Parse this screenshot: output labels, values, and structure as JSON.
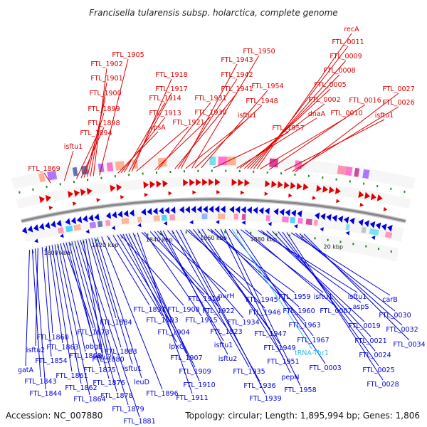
{
  "title": "Francisella tularensis subsp. holarctica, complete genome",
  "footer": {
    "accession": "Accession: NC_007880",
    "topology": "Topology: circular; Length: 1,895,994 bp; Genes: 1,806"
  },
  "colors": {
    "forward": "#e00000",
    "reverse": "#0000dd",
    "trna": "#33bbee",
    "backbone": "#888888",
    "ticks": "#1a8a1a"
  },
  "kbp_marks": [
    "1800 kbp",
    "1820 kbp",
    "1840 kbp",
    "1860 kbp",
    "1880 kbp",
    "20 kbp"
  ],
  "top_labels": [
    "FTL_1869",
    "isftu1",
    "FTL_1894",
    "FTL_1898",
    "FTL_1899",
    "FTL_1900",
    "FTL_1901",
    "FTL_1902",
    "FTL_1905",
    "rpsA",
    "FTL_1913",
    "FTL_1914",
    "FTL_1917",
    "FTL_1918",
    "FTL_1921",
    "FTL_1930",
    "FTL_1931",
    "FTL_1941",
    "FTL_1942",
    "FTL_1943",
    "isftu1",
    "FTL_1950",
    "FTL_1948",
    "FTL_1954",
    "FTL_1957",
    "dnaA",
    "FTL_0002",
    "FTL_0005",
    "FTL_0008",
    "FTL_0009",
    "FTL_0011",
    "recA",
    "FTL_0010",
    "FTL_0016",
    "isftu1",
    "FTL_0026",
    "FTL_0027"
  ],
  "bottom_labels": [
    "gatA",
    "FTL_1843",
    "FTL_1844",
    "isftu2",
    "FTL_1854",
    "FTL_1860",
    "FTL_1863",
    "FTL_1861",
    "FTL_1862",
    "FTL_1864",
    "FTL_1868",
    "FTL_1873",
    "obgE",
    "FTL_1875",
    "FTL_1876",
    "FTL_1878",
    "FTL_1879",
    "FTL_1881",
    "isftu2",
    "FTL_1880",
    "FTL_1883",
    "FTL_1884",
    "isftu1",
    "leuD",
    "FTL_1896",
    "FTL_1897",
    "FTL_1903",
    "FTL_1904",
    "FTL_1908",
    "lpxC",
    "FTL_1907",
    "FTL_1909",
    "FTL_1910",
    "FTL_1911",
    "FTL_1916",
    "FTL_1915",
    "FTL_1922",
    "FTL_1923",
    "purH",
    "isftu1",
    "isftu2",
    "FTL_1934",
    "FTL_1935",
    "FTL_1936",
    "FTL_1939",
    "FTL_1945",
    "FTL_1946",
    "FTL_1947",
    "FTL_1949",
    "FTL_1951",
    "FTL_1959",
    "FTL_1960",
    "FTL_1963",
    "pepN",
    "FTL_1958",
    "FTL_1967",
    "tRNA-Thr1",
    "FTL_0003",
    "isftu1",
    "FTL_0007",
    "isftu1",
    "aspS",
    "FTL_0019",
    "FTL_0021",
    "FTL_0024",
    "FTL_0025",
    "FTL_0028",
    "carB",
    "FTL_0030",
    "FTL_0032",
    "FTL_0034"
  ]
}
